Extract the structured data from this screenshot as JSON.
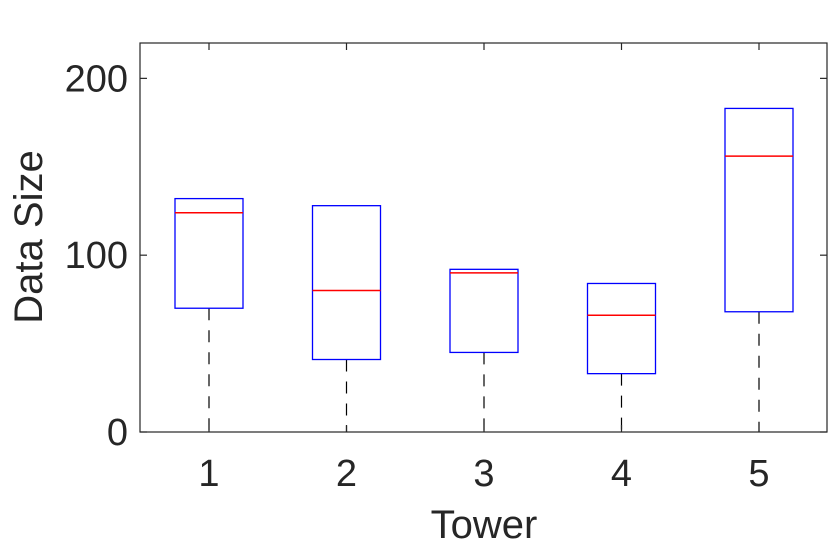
{
  "chart_data": {
    "type": "box",
    "title": "",
    "xlabel": "Tower",
    "ylabel": "Data Size",
    "categories": [
      "1",
      "2",
      "3",
      "4",
      "5"
    ],
    "ylim": [
      0,
      220
    ],
    "yticks": [
      "0",
      "100",
      "200"
    ],
    "grid": false,
    "box_color": "#0000ff",
    "median_color": "#ff0000",
    "whisker_color": "#000000",
    "boxes": [
      {
        "category": "1",
        "whisker_low": 0,
        "q1": 70,
        "median": 124,
        "q3": 132,
        "whisker_high": 132
      },
      {
        "category": "2",
        "whisker_low": 0,
        "q1": 41,
        "median": 80,
        "q3": 128,
        "whisker_high": 128
      },
      {
        "category": "3",
        "whisker_low": 0,
        "q1": 45,
        "median": 90,
        "q3": 92,
        "whisker_high": 92
      },
      {
        "category": "4",
        "whisker_low": 0,
        "q1": 33,
        "median": 66,
        "q3": 84,
        "whisker_high": 84
      },
      {
        "category": "5",
        "whisker_low": 0,
        "q1": 68,
        "median": 156,
        "q3": 183,
        "whisker_high": 183
      }
    ]
  }
}
